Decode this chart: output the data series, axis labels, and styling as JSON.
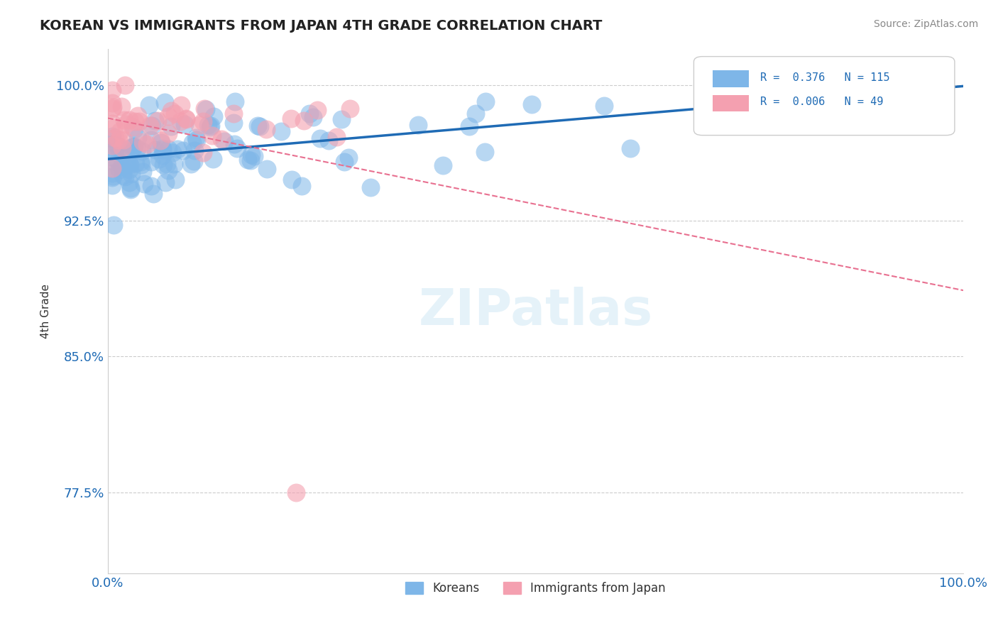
{
  "title": "KOREAN VS IMMIGRANTS FROM JAPAN 4TH GRADE CORRELATION CHART",
  "source": "Source: ZipAtlas.com",
  "ylabel": "4th Grade",
  "xlim": [
    0.0,
    1.0
  ],
  "ylim": [
    0.73,
    1.02
  ],
  "yticks": [
    0.775,
    0.85,
    0.925,
    1.0
  ],
  "ytick_labels": [
    "77.5%",
    "85.0%",
    "92.5%",
    "100.0%"
  ],
  "xtick_labels": [
    "0.0%",
    "100.0%"
  ],
  "xticks": [
    0.0,
    1.0
  ],
  "korean_R": 0.376,
  "korean_N": 115,
  "japan_R": 0.006,
  "japan_N": 49,
  "korean_color": "#7EB6E8",
  "japan_color": "#F4A0B0",
  "trend_korean_color": "#1F6BB5",
  "trend_japan_color": "#E87090",
  "legend_koreans": "Koreans",
  "legend_japan": "Immigrants from Japan"
}
